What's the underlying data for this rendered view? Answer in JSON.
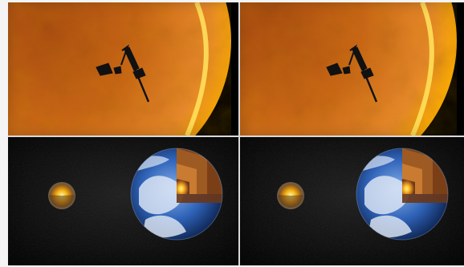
{
  "panels": [
    {
      "scene": "sun-transit",
      "position": "top-left"
    },
    {
      "scene": "sun-transit",
      "position": "top-right"
    },
    {
      "scene": "planet-comparison",
      "position": "bottom-left"
    },
    {
      "scene": "planet-comparison",
      "position": "bottom-right"
    }
  ],
  "colors": {
    "sun_core": "#7b2d00",
    "sun_mid": "#c85a10",
    "sun_edge": "#ffb000",
    "space": "#050505",
    "earth_ocean": "#2f63b8",
    "earth_cloud": "#dfe8f5",
    "planet_core": "#f2b21d",
    "planet_shell": "#8a5a1d"
  },
  "icons": {
    "spacecraft": "spacecraft-icon",
    "small_planet": "small-planet-icon",
    "earth": "earth-icon"
  }
}
